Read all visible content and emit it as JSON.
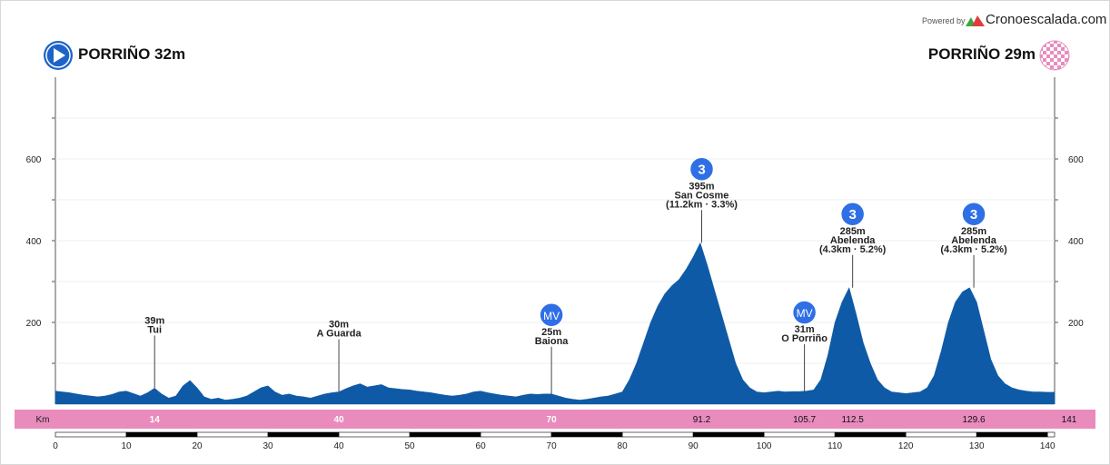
{
  "header": {
    "powered_by": "Powered by",
    "brand": "Cronoescalada.com",
    "start": "PORRIÑO 32m",
    "finish": "PORRIÑO 29m"
  },
  "colors": {
    "profile_fill": "#0f5aa6",
    "km_band": "#e98bbd",
    "start_icon": "#1e63c8",
    "climb_badge": "#2f6fe6",
    "finish_icon": "#e98bbd"
  },
  "chart_data": {
    "type": "area",
    "title": "",
    "xlabel": "",
    "ylabel": "",
    "xlim": [
      0,
      141
    ],
    "ylim": [
      0,
      700
    ],
    "y_ticks": [
      200,
      400,
      600
    ],
    "x_ticks": [
      0,
      10,
      20,
      30,
      40,
      50,
      60,
      70,
      80,
      90,
      100,
      110,
      120,
      130,
      140
    ],
    "grid": true,
    "x": [
      0,
      1,
      2,
      3,
      4,
      5,
      6,
      7,
      8,
      9,
      10,
      11,
      12,
      13,
      14,
      15,
      16,
      17,
      18,
      19,
      20,
      21,
      22,
      23,
      24,
      25,
      26,
      27,
      28,
      29,
      30,
      31,
      32,
      33,
      34,
      35,
      36,
      37,
      38,
      39,
      40,
      41,
      42,
      43,
      44,
      45,
      46,
      47,
      48,
      49,
      50,
      51,
      52,
      53,
      54,
      55,
      56,
      57,
      58,
      59,
      60,
      61,
      62,
      63,
      64,
      65,
      66,
      67,
      68,
      69,
      70,
      71,
      72,
      73,
      74,
      75,
      76,
      77,
      78,
      79,
      80,
      81,
      82,
      83,
      84,
      85,
      86,
      87,
      88,
      89,
      90,
      91,
      92,
      93,
      94,
      95,
      96,
      97,
      98,
      99,
      100,
      101,
      102,
      103,
      104,
      105,
      106,
      107,
      108,
      109,
      110,
      111,
      112,
      113,
      114,
      115,
      116,
      117,
      118,
      119,
      120,
      121,
      122,
      123,
      124,
      125,
      126,
      127,
      128,
      129,
      130,
      131,
      132,
      133,
      134,
      135,
      136,
      137,
      138,
      139,
      140,
      141
    ],
    "elevation": [
      32,
      30,
      28,
      25,
      22,
      20,
      18,
      20,
      24,
      30,
      32,
      26,
      20,
      28,
      39,
      25,
      15,
      20,
      45,
      58,
      40,
      18,
      12,
      15,
      10,
      12,
      15,
      20,
      30,
      40,
      45,
      30,
      22,
      25,
      20,
      18,
      15,
      20,
      25,
      28,
      30,
      38,
      45,
      50,
      42,
      45,
      48,
      40,
      38,
      36,
      35,
      32,
      30,
      28,
      25,
      22,
      20,
      22,
      25,
      30,
      32,
      28,
      25,
      22,
      20,
      18,
      22,
      25,
      24,
      25,
      25,
      20,
      15,
      12,
      10,
      12,
      15,
      18,
      20,
      25,
      30,
      60,
      100,
      150,
      200,
      240,
      270,
      290,
      305,
      330,
      360,
      395,
      340,
      280,
      220,
      160,
      100,
      60,
      40,
      30,
      28,
      30,
      32,
      30,
      31,
      31,
      32,
      35,
      60,
      120,
      200,
      250,
      285,
      220,
      150,
      100,
      60,
      40,
      30,
      28,
      26,
      28,
      30,
      40,
      70,
      130,
      200,
      250,
      275,
      285,
      250,
      180,
      110,
      70,
      50,
      40,
      35,
      32,
      30,
      30,
      29,
      29
    ],
    "waypoints": [
      {
        "km": 14,
        "altitude": "39m",
        "name": "Tui",
        "detail": "",
        "badge": ""
      },
      {
        "km": 40,
        "altitude": "30m",
        "name": "A Guarda",
        "detail": "",
        "badge": ""
      },
      {
        "km": 70,
        "altitude": "25m",
        "name": "Baiona",
        "detail": "",
        "badge": "MV"
      },
      {
        "km": 91.2,
        "altitude": "395m",
        "name": "San Cosme",
        "detail": "(11.2km · 3.3%)",
        "badge": "3"
      },
      {
        "km": 105.7,
        "altitude": "31m",
        "name": "O Porriño",
        "detail": "",
        "badge": "MV"
      },
      {
        "km": 112.5,
        "altitude": "285m",
        "name": "Abelenda",
        "detail": "(4.3km · 5.2%)",
        "badge": "3"
      },
      {
        "km": 129.6,
        "altitude": "285m",
        "name": "Abelenda",
        "detail": "(4.3km · 5.2%)",
        "badge": "3"
      }
    ],
    "km_band": {
      "label": "Km",
      "marks": [
        "14",
        "40",
        "70",
        "91.2",
        "105.7",
        "112.5",
        "129.6",
        "141"
      ],
      "mark_km": [
        14,
        40,
        70,
        91.2,
        105.7,
        112.5,
        129.6,
        141
      ]
    }
  }
}
